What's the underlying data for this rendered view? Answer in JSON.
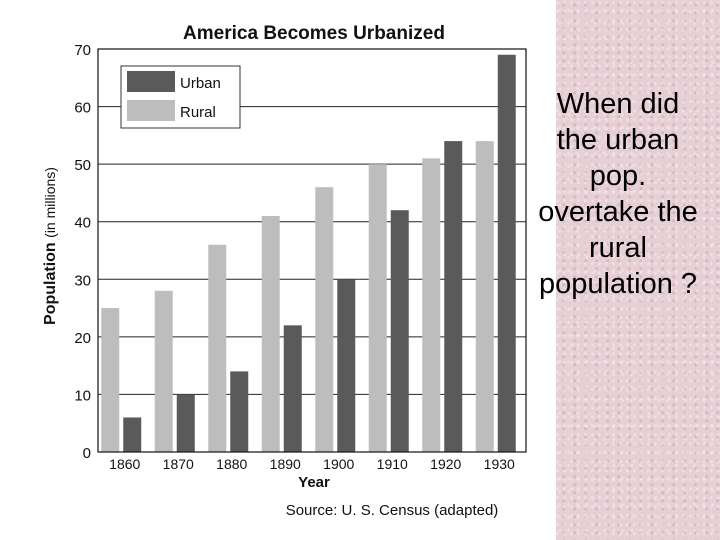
{
  "question": "When did\nthe urban\npop.\novertake the\nrural\npopulation ?",
  "chart_data": {
    "type": "bar",
    "title": "America Becomes Urbanized",
    "xlabel": "Year",
    "ylabel": "Population",
    "ylabel_unit": "(in millions)",
    "source": "Source: U. S. Census (adapted)",
    "categories": [
      "1860",
      "1870",
      "1880",
      "1890",
      "1900",
      "1910",
      "1920",
      "1930"
    ],
    "ylim": [
      0,
      70
    ],
    "yticks": [
      "0",
      "10",
      "20",
      "30",
      "40",
      "50",
      "60",
      "70"
    ],
    "grid": true,
    "legend_position": "top-left",
    "series": [
      {
        "name": "Rural",
        "values": [
          25,
          28,
          36,
          41,
          46,
          50,
          51,
          54
        ],
        "color": "#bdbdbd"
      },
      {
        "name": "Urban",
        "values": [
          6,
          10,
          14,
          22,
          30,
          42,
          54,
          69
        ],
        "color": "#5a5a5a"
      }
    ]
  }
}
